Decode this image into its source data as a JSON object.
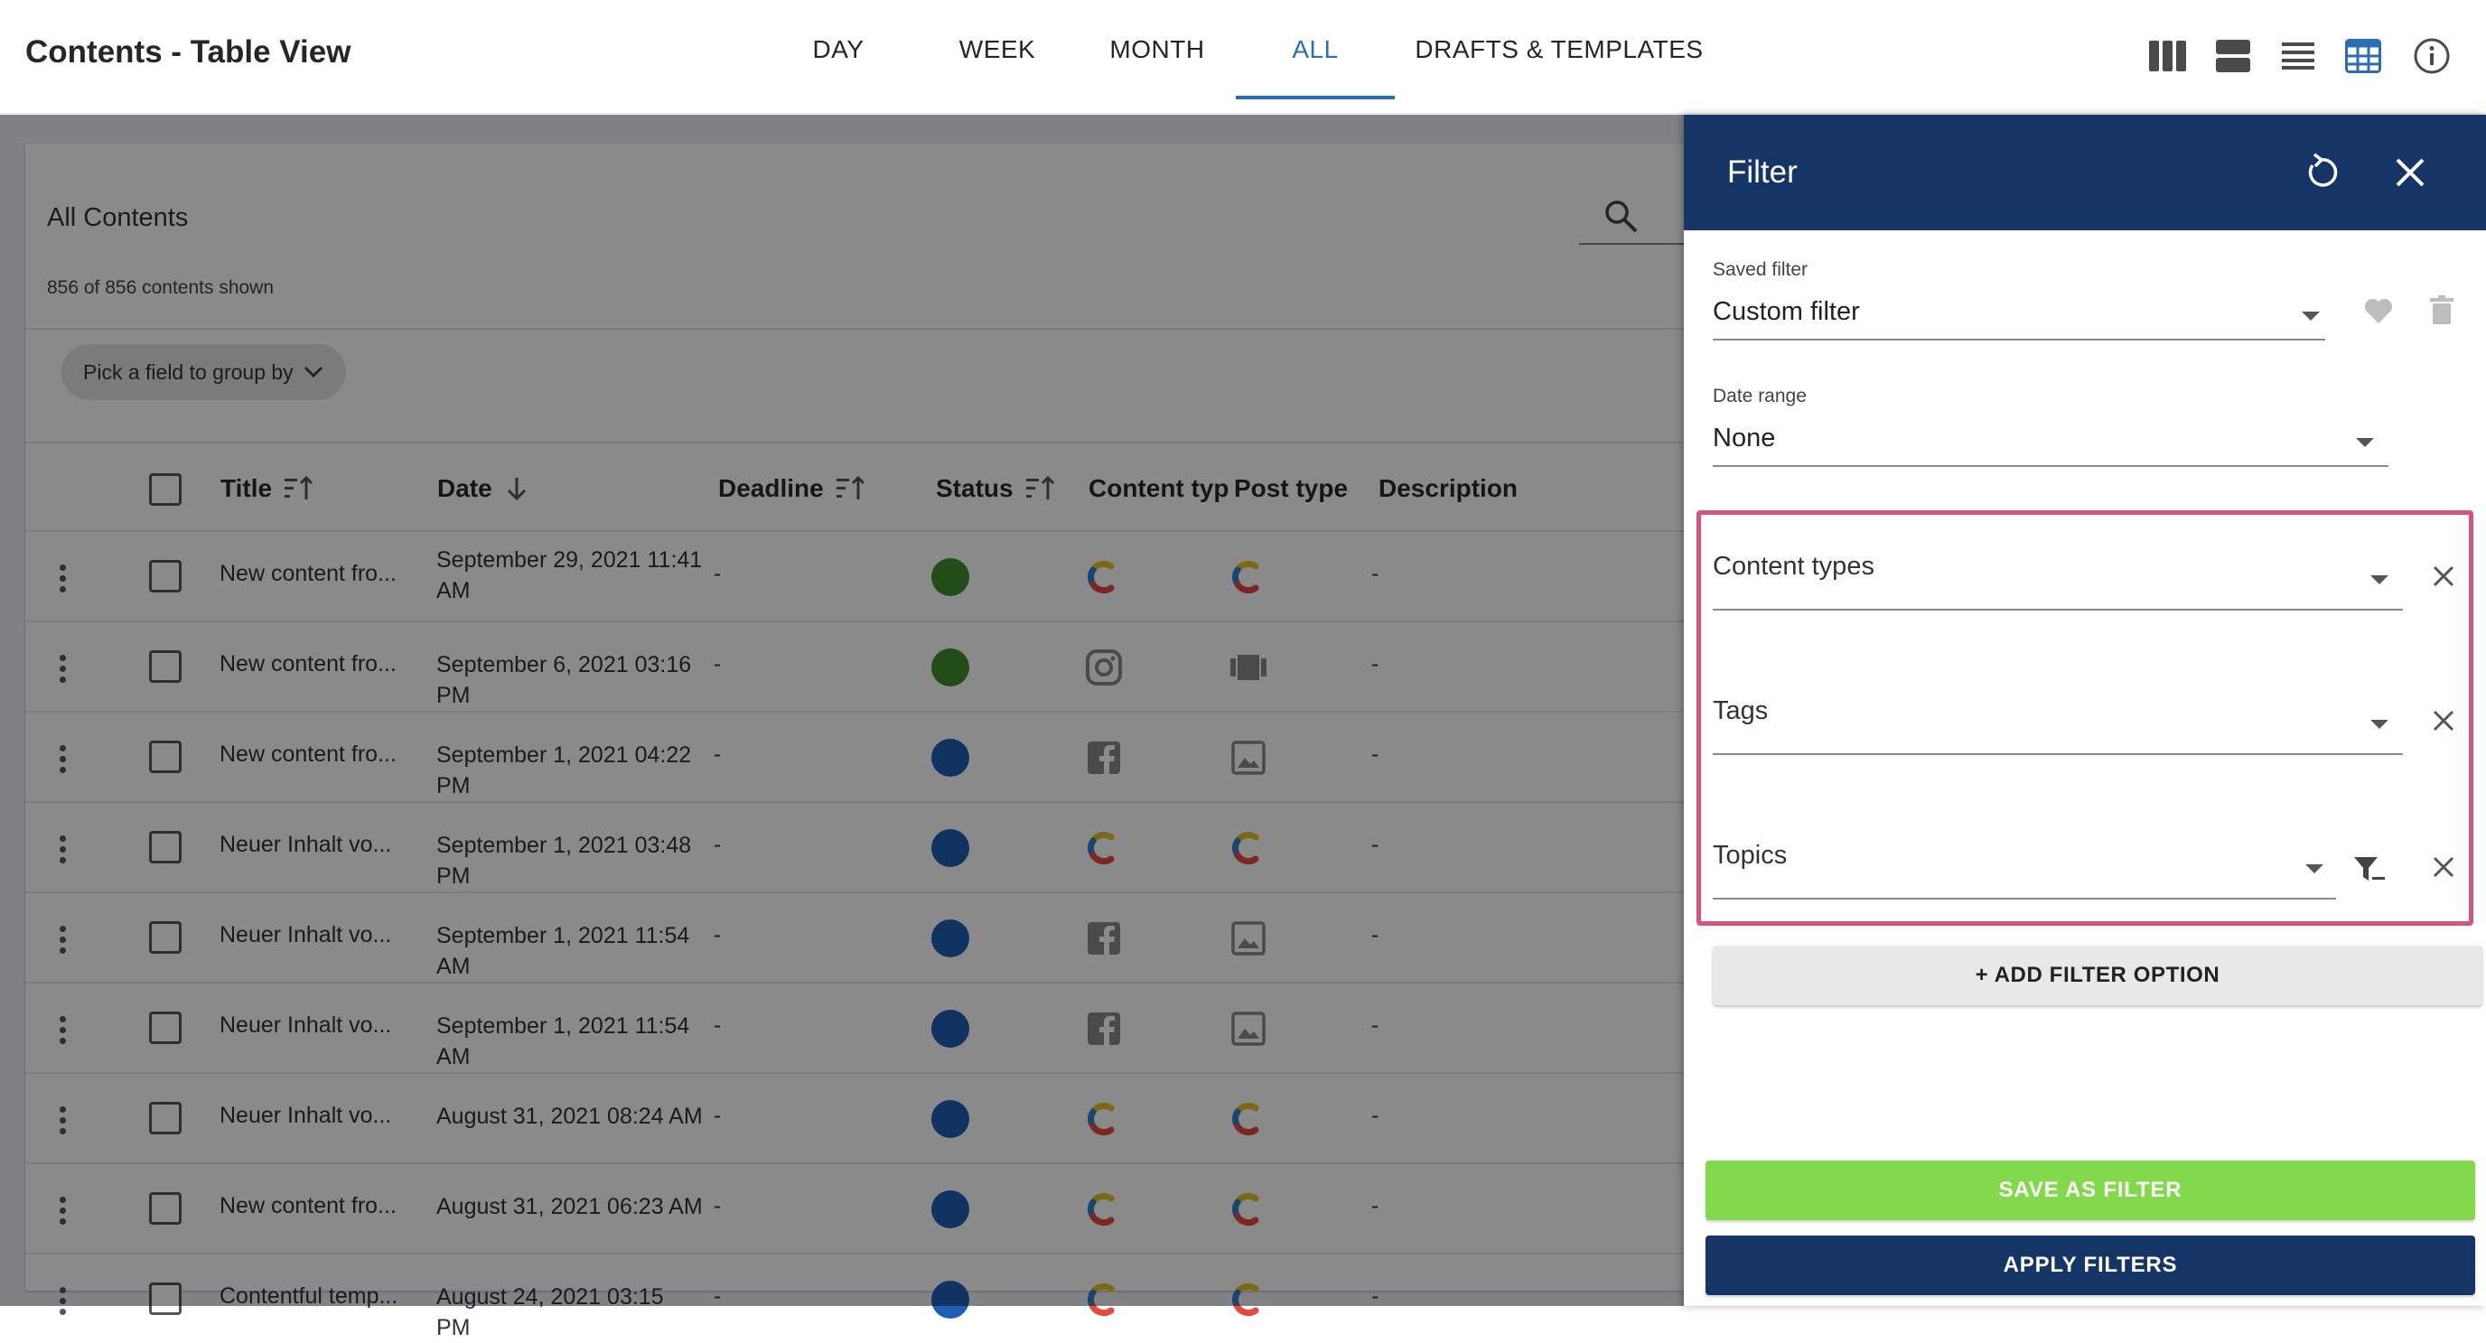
{
  "header": {
    "title": "Contents - Table View",
    "tabs": [
      {
        "label": "DAY"
      },
      {
        "label": "WEEK"
      },
      {
        "label": "MONTH"
      },
      {
        "label": "ALL",
        "active": true
      },
      {
        "label": "DRAFTS & TEMPLATES"
      }
    ],
    "view_icons": [
      "columns-view-icon",
      "card-view-icon",
      "list-view-icon",
      "table-view-icon",
      "info-icon"
    ]
  },
  "table": {
    "heading": "All Contents",
    "count_text": "856 of 856 contents shown",
    "group_by_label": "Pick a field to group by",
    "columns": [
      "Title",
      "Date",
      "Deadline",
      "Status",
      "Content typ",
      "Post type",
      "Description"
    ],
    "rows": [
      {
        "title": "New content fro...",
        "date": "September 29, 2021 11:41 AM",
        "deadline": "-",
        "status": "green",
        "content_type": "contentful-icon",
        "post_type": "contentful-icon",
        "description": "-"
      },
      {
        "title": "New content fro...",
        "date": "September 6, 2021 03:16 PM",
        "deadline": "-",
        "status": "green",
        "content_type": "instagram-icon",
        "post_type": "video-icon",
        "description": "-"
      },
      {
        "title": "New content fro...",
        "date": "September 1, 2021 04:22 PM",
        "deadline": "-",
        "status": "blue",
        "content_type": "facebook-icon",
        "post_type": "image-icon",
        "description": "-"
      },
      {
        "title": "Neuer Inhalt vo...",
        "date": "September 1, 2021 03:48 PM",
        "deadline": "-",
        "status": "blue",
        "content_type": "contentful-icon",
        "post_type": "contentful-icon",
        "description": "-"
      },
      {
        "title": "Neuer Inhalt vo...",
        "date": "September 1, 2021 11:54 AM",
        "deadline": "-",
        "status": "blue",
        "content_type": "facebook-icon",
        "post_type": "image-icon",
        "description": "-"
      },
      {
        "title": "Neuer Inhalt vo...",
        "date": "September 1, 2021 11:54 AM",
        "deadline": "-",
        "status": "blue",
        "content_type": "facebook-icon",
        "post_type": "image-icon",
        "description": "-"
      },
      {
        "title": "Neuer Inhalt vo...",
        "date": "August 31, 2021 08:24 AM",
        "deadline": "-",
        "status": "blue",
        "content_type": "contentful-icon",
        "post_type": "contentful-icon",
        "description": "-"
      },
      {
        "title": "New content fro...",
        "date": "August 31, 2021 06:23 AM",
        "deadline": "-",
        "status": "blue",
        "content_type": "contentful-icon",
        "post_type": "contentful-icon",
        "description": "-"
      },
      {
        "title": "Contentful temp...",
        "date": "August 24, 2021 03:15 PM",
        "deadline": "-",
        "status": "blue",
        "content_type": "contentful-icon",
        "post_type": "contentful-icon",
        "description": "-"
      }
    ]
  },
  "filter": {
    "title": "Filter",
    "saved_filter_label": "Saved filter",
    "saved_filter_value": "Custom filter",
    "date_range_label": "Date range",
    "date_range_value": "None",
    "content_types_label": "Content types",
    "tags_label": "Tags",
    "topics_label": "Topics",
    "add_filter_label": "+ ADD FILTER OPTION",
    "save_label": "SAVE AS FILTER",
    "apply_label": "APPLY FILTERS"
  },
  "colors": {
    "accent": "#2d6db5",
    "drawer_header": "#163567",
    "save_button": "#82d94b",
    "highlight": "#d6557f",
    "status_green": "#3f8f2f",
    "status_blue": "#1f5fb3"
  }
}
